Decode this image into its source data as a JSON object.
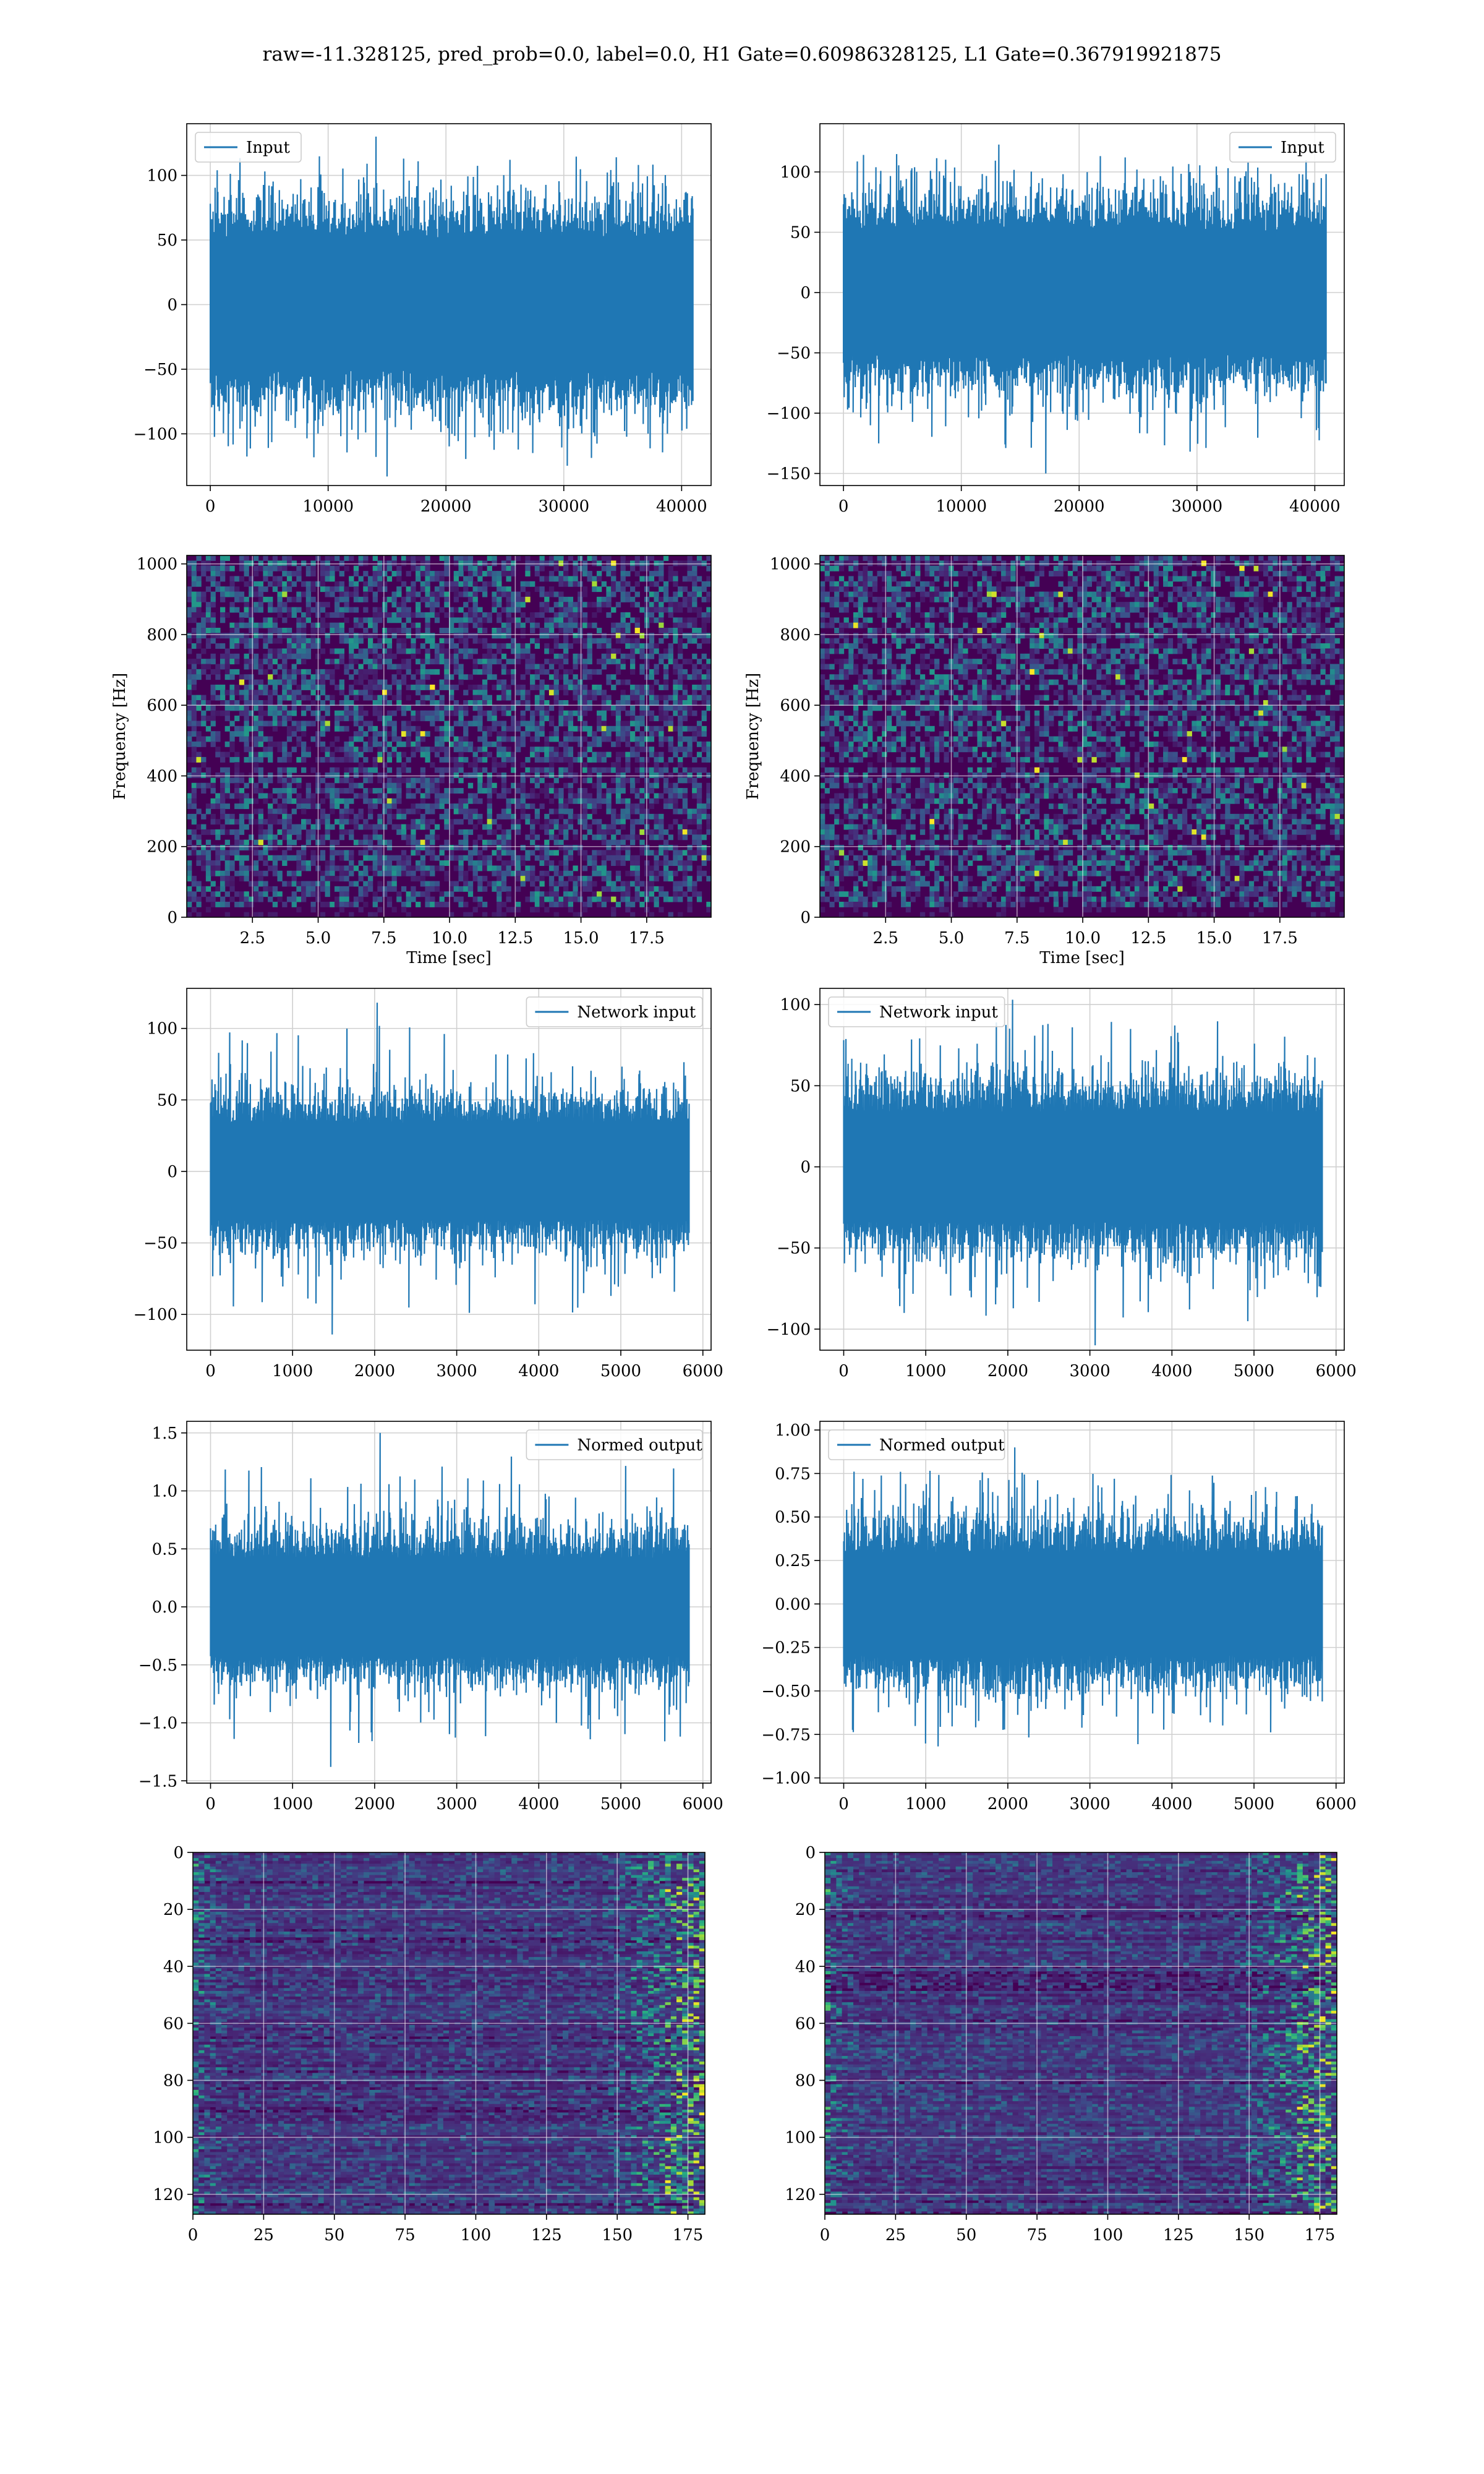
{
  "figure": {
    "title": "raw=-11.328125, pred_prob=0.0, label=0.0, H1 Gate=0.60986328125, L1 Gate=0.367919921875"
  },
  "colors": {
    "line": "#1f77b4",
    "grid": "#d0d0d0",
    "viridis_dark": "#440154",
    "viridis_mid": "#21918c",
    "viridis_bright": "#fde725"
  },
  "chart_data": [
    {
      "id": "row1-left",
      "type": "line",
      "legend": "Input",
      "legend_loc": "upper-left",
      "xlim": [
        -2000,
        42500
      ],
      "ylim": [
        -140,
        140
      ],
      "xticks": [
        0,
        10000,
        20000,
        30000,
        40000
      ],
      "yticks": [
        -100,
        -50,
        0,
        50,
        100
      ],
      "series": {
        "x_start": 0,
        "x_end": 40960,
        "points": 700,
        "envelope": 60,
        "spike_max": 130,
        "spike_min": -133,
        "seed": 11
      },
      "grid": true
    },
    {
      "id": "row1-right",
      "type": "line",
      "legend": "Input",
      "legend_loc": "upper-right",
      "xlim": [
        -2000,
        42500
      ],
      "ylim": [
        -160,
        140
      ],
      "xticks": [
        0,
        10000,
        20000,
        30000,
        40000
      ],
      "yticks": [
        -150,
        -100,
        -50,
        0,
        50,
        100
      ],
      "series": {
        "x_start": 0,
        "x_end": 40960,
        "points": 700,
        "envelope": 60,
        "spike_max": 132,
        "spike_min": -150,
        "seed": 23
      },
      "grid": true
    },
    {
      "id": "row2-left",
      "type": "heatmap",
      "xlabel": "Time [sec]",
      "ylabel": "Frequency [Hz]",
      "xlim": [
        0,
        19.95
      ],
      "ylim": [
        0,
        1024
      ],
      "xticks": [
        2.5,
        5.0,
        7.5,
        10.0,
        12.5,
        15.0,
        17.5
      ],
      "yticks": [
        0,
        200,
        400,
        600,
        800,
        1000
      ],
      "cmap": "viridis",
      "cells": {
        "cols": 110,
        "rows": 70,
        "seed": 5,
        "style": "spectrogram"
      },
      "grid": true
    },
    {
      "id": "row2-right",
      "type": "heatmap",
      "xlabel": "Time [sec]",
      "ylabel": "Frequency [Hz]",
      "xlim": [
        0,
        19.95
      ],
      "ylim": [
        0,
        1024
      ],
      "xticks": [
        2.5,
        5.0,
        7.5,
        10.0,
        12.5,
        15.0,
        17.5
      ],
      "yticks": [
        0,
        200,
        400,
        600,
        800,
        1000
      ],
      "cmap": "viridis",
      "cells": {
        "cols": 110,
        "rows": 70,
        "seed": 9,
        "style": "spectrogram"
      },
      "grid": true
    },
    {
      "id": "row3-left",
      "type": "line",
      "legend": "Network input",
      "legend_loc": "upper-right",
      "xlim": [
        -290,
        6100
      ],
      "ylim": [
        -125,
        128
      ],
      "xticks": [
        0,
        1000,
        2000,
        3000,
        4000,
        5000,
        6000
      ],
      "yticks": [
        -100,
        -50,
        0,
        50,
        100
      ],
      "series": {
        "x_start": 0,
        "x_end": 5832,
        "points": 650,
        "envelope": 40,
        "spike_max": 118,
        "spike_min": -114,
        "seed": 31
      },
      "grid": true
    },
    {
      "id": "row3-right",
      "type": "line",
      "legend": "Network input",
      "legend_loc": "upper-left",
      "xlim": [
        -290,
        6100
      ],
      "ylim": [
        -113,
        110
      ],
      "xticks": [
        0,
        1000,
        2000,
        3000,
        4000,
        5000,
        6000
      ],
      "yticks": [
        -100,
        -50,
        0,
        50,
        100
      ],
      "series": {
        "x_start": 0,
        "x_end": 5832,
        "points": 650,
        "envelope": 40,
        "spike_max": 103,
        "spike_min": -110,
        "seed": 47
      },
      "grid": true
    },
    {
      "id": "row4-left",
      "type": "line",
      "legend": "Normed output",
      "legend_loc": "upper-right",
      "xlim": [
        -290,
        6100
      ],
      "ylim": [
        -1.52,
        1.6
      ],
      "xticks": [
        0,
        1000,
        2000,
        3000,
        4000,
        5000,
        6000
      ],
      "yticks": [
        -1.5,
        -1.0,
        -0.5,
        0.0,
        0.5,
        1.0,
        1.5
      ],
      "series": {
        "x_start": 0,
        "x_end": 5832,
        "points": 650,
        "envelope": 0.5,
        "spike_max": 1.5,
        "spike_min": -1.38,
        "seed": 53
      },
      "grid": true
    },
    {
      "id": "row4-right",
      "type": "line",
      "legend": "Normed output",
      "legend_loc": "upper-left",
      "xlim": [
        -290,
        6100
      ],
      "ylim": [
        -1.03,
        1.05
      ],
      "xticks": [
        0,
        1000,
        2000,
        3000,
        4000,
        5000,
        6000
      ],
      "yticks": [
        -1.0,
        -0.75,
        -0.5,
        -0.25,
        0.0,
        0.25,
        0.5,
        0.75,
        1.0
      ],
      "series": {
        "x_start": 0,
        "x_end": 5832,
        "points": 650,
        "envelope": 0.35,
        "spike_max": 0.9,
        "spike_min": -0.94,
        "seed": 67
      },
      "grid": true
    },
    {
      "id": "row5-left",
      "type": "heatmap",
      "xlim": [
        0,
        181
      ],
      "ylim": [
        127,
        0
      ],
      "xticks": [
        0,
        25,
        50,
        75,
        100,
        125,
        150,
        175
      ],
      "yticks": [
        0,
        20,
        40,
        60,
        80,
        100,
        120
      ],
      "cmap": "viridis",
      "cells": {
        "cols": 90,
        "rows": 128,
        "seed": 71,
        "style": "activation"
      },
      "grid": true
    },
    {
      "id": "row5-right",
      "type": "heatmap",
      "xlim": [
        0,
        181
      ],
      "ylim": [
        127,
        0
      ],
      "xticks": [
        0,
        25,
        50,
        75,
        100,
        125,
        150,
        175
      ],
      "yticks": [
        0,
        20,
        40,
        60,
        80,
        100,
        120
      ],
      "cmap": "viridis",
      "cells": {
        "cols": 90,
        "rows": 128,
        "seed": 83,
        "style": "activation"
      },
      "grid": true
    }
  ]
}
